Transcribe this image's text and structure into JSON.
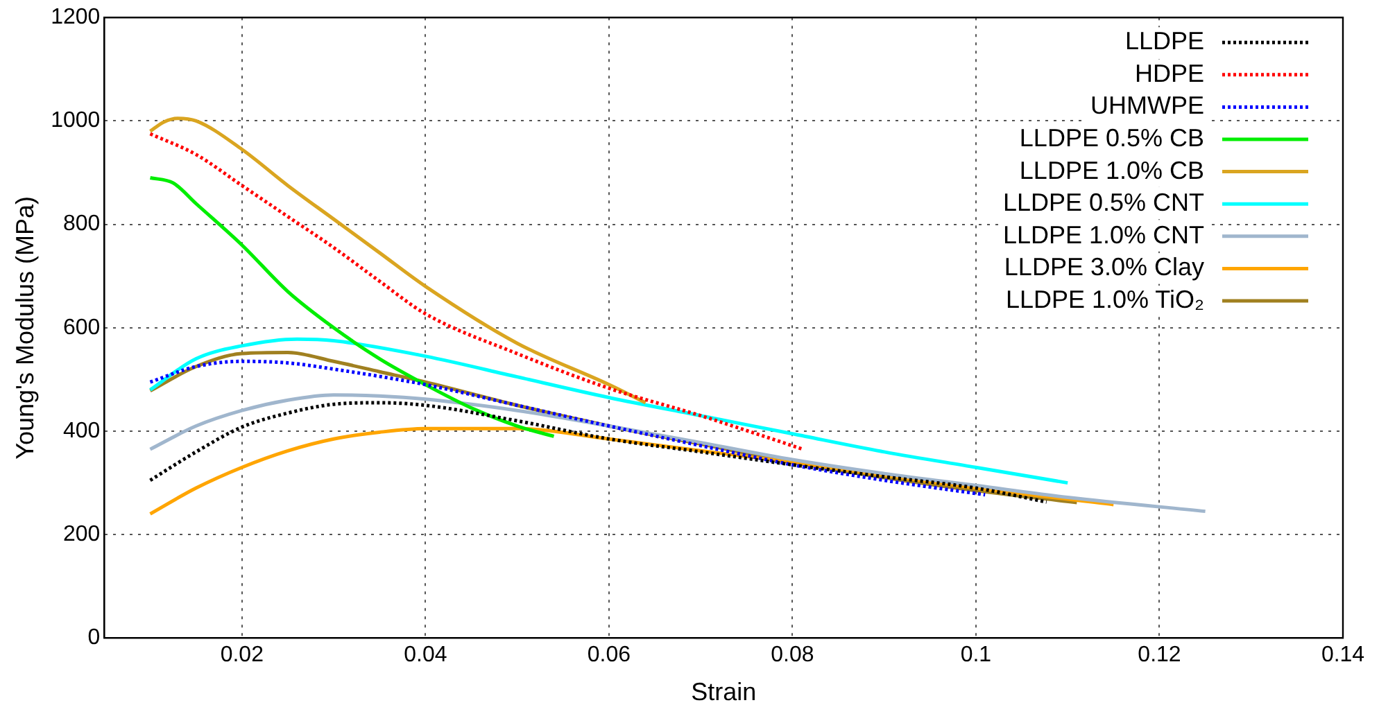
{
  "chart_data": {
    "type": "line",
    "xlabel": "Strain",
    "ylabel": "Young's Modulus (MPa)",
    "xlim": [
      0.005,
      0.14
    ],
    "xticks": [
      0.02,
      0.04,
      0.06,
      0.08,
      0.1,
      0.12,
      0.14
    ],
    "ylim": [
      0,
      1200
    ],
    "yticks": [
      0,
      200,
      400,
      600,
      800,
      1000,
      1200
    ],
    "grid": true,
    "legend": "top right",
    "marker": "none",
    "series": [
      {
        "name": "LLDPE",
        "color": "#000000",
        "line_style": "dotted",
        "x": [
          0.01,
          0.015,
          0.02,
          0.025,
          0.03,
          0.035,
          0.04,
          0.05,
          0.06,
          0.07,
          0.08,
          0.09,
          0.1,
          0.1077
        ],
        "values": [
          305,
          360,
          408,
          435,
          452,
          455,
          450,
          420,
          385,
          360,
          335,
          312,
          290,
          263
        ]
      },
      {
        "name": "HDPE",
        "color": "#ff0000",
        "line_style": "dotted",
        "x": [
          0.01,
          0.015,
          0.02,
          0.025,
          0.03,
          0.035,
          0.04,
          0.05,
          0.06,
          0.07,
          0.081
        ],
        "values": [
          975,
          935,
          875,
          815,
          755,
          690,
          627,
          550,
          483,
          430,
          366
        ]
      },
      {
        "name": "UHMWPE",
        "color": "#0000ff",
        "line_style": "dotted",
        "x": [
          0.01,
          0.015,
          0.02,
          0.025,
          0.03,
          0.04,
          0.05,
          0.06,
          0.07,
          0.08,
          0.09,
          0.101
        ],
        "values": [
          495,
          525,
          535,
          532,
          520,
          490,
          450,
          410,
          372,
          335,
          305,
          277
        ]
      },
      {
        "name": "LLDPE 0.5% CB",
        "color": "#00ee00",
        "line_style": "solid",
        "x": [
          0.01,
          0.0125,
          0.015,
          0.02,
          0.025,
          0.03,
          0.035,
          0.04,
          0.045,
          0.05,
          0.054
        ],
        "values": [
          890,
          880,
          840,
          760,
          670,
          600,
          540,
          490,
          445,
          410,
          390
        ]
      },
      {
        "name": "LLDPE 1.0% CB",
        "color": "#daa520",
        "line_style": "solid",
        "x": [
          0.01,
          0.0115,
          0.013,
          0.015,
          0.02,
          0.025,
          0.03,
          0.035,
          0.04,
          0.05,
          0.06,
          0.064
        ],
        "values": [
          980,
          998,
          1005,
          1000,
          945,
          875,
          810,
          745,
          680,
          570,
          490,
          455
        ]
      },
      {
        "name": "LLDPE 0.5% CNT",
        "color": "#00ffff",
        "line_style": "solid",
        "x": [
          0.01,
          0.015,
          0.02,
          0.026,
          0.03,
          0.04,
          0.05,
          0.06,
          0.07,
          0.08,
          0.09,
          0.1,
          0.11
        ],
        "values": [
          480,
          540,
          565,
          578,
          575,
          545,
          505,
          465,
          430,
          395,
          360,
          330,
          300
        ]
      },
      {
        "name": "LLDPE 1.0% CNT",
        "color": "#a0b6cd",
        "line_style": "solid",
        "x": [
          0.01,
          0.015,
          0.02,
          0.025,
          0.03,
          0.035,
          0.04,
          0.05,
          0.06,
          0.07,
          0.08,
          0.09,
          0.1,
          0.11,
          0.125
        ],
        "values": [
          365,
          410,
          440,
          460,
          470,
          468,
          462,
          440,
          410,
          378,
          345,
          318,
          295,
          272,
          245
        ]
      },
      {
        "name": "LLDPE 3.0% Clay",
        "color": "#ffa500",
        "line_style": "solid",
        "x": [
          0.01,
          0.015,
          0.02,
          0.025,
          0.03,
          0.035,
          0.04,
          0.05,
          0.06,
          0.07,
          0.08,
          0.09,
          0.1,
          0.115
        ],
        "values": [
          240,
          290,
          330,
          362,
          385,
          398,
          405,
          405,
          385,
          362,
          340,
          315,
          290,
          258
        ]
      },
      {
        "name": "LLDPE 1.0% TiO₂",
        "color": "#a08020",
        "line_style": "solid",
        "x": [
          0.01,
          0.015,
          0.02,
          0.025,
          0.03,
          0.035,
          0.04,
          0.05,
          0.06,
          0.07,
          0.08,
          0.09,
          0.1,
          0.111
        ],
        "values": [
          478,
          525,
          550,
          552,
          535,
          515,
          495,
          450,
          410,
          375,
          340,
          310,
          285,
          262
        ]
      }
    ]
  }
}
